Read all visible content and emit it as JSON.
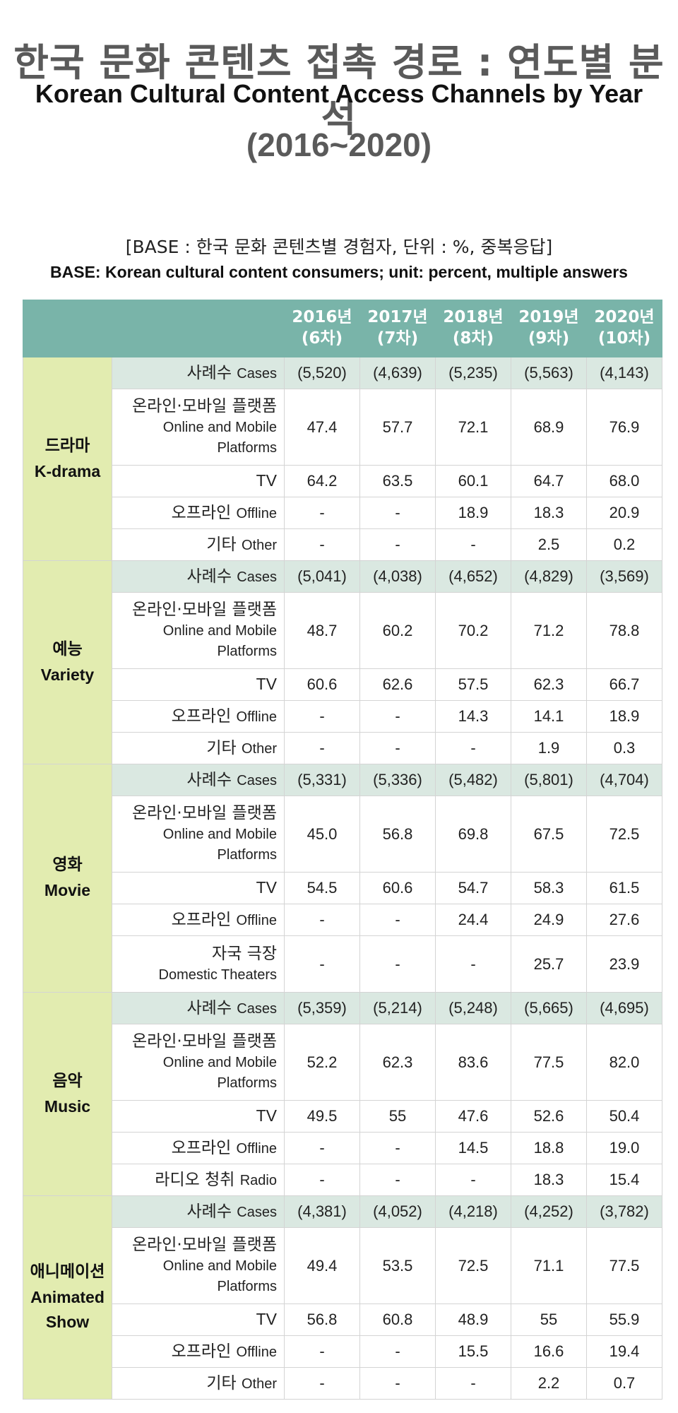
{
  "title": {
    "korean": "한국 문화 콘텐츠 접촉 경로 : 연도별 분석",
    "english": "Korean Cultural Content Access Channels by Year",
    "years": "(2016~2020)"
  },
  "base": {
    "korean": "[BASE : 한국 문화 콘텐츠별 경험자, 단위 : %, 중복응답]",
    "english": "BASE: Korean cultural content consumers; unit: percent, multiple answers"
  },
  "header": [
    {
      "year": "2016년",
      "wave": "(6차)"
    },
    {
      "year": "2017년",
      "wave": "(7차)"
    },
    {
      "year": "2018년",
      "wave": "(8차)"
    },
    {
      "year": "2019년",
      "wave": "(9차)"
    },
    {
      "year": "2020년",
      "wave": "(10차)"
    }
  ],
  "categories": [
    {
      "ko": "드라마",
      "en": "K-drama",
      "rows": [
        {
          "ko": "사례수",
          "en": "Cases",
          "values": [
            "(5,520)",
            "(4,639)",
            "(5,235)",
            "(5,563)",
            "(4,143)"
          ]
        },
        {
          "ko": "온라인·모바일 플랫폼",
          "en": "Online and Mobile Platforms",
          "values": [
            "47.4",
            "57.7",
            "72.1",
            "68.9",
            "76.9"
          ]
        },
        {
          "ko": "",
          "en": "TV",
          "values": [
            "64.2",
            "63.5",
            "60.1",
            "64.7",
            "68.0"
          ]
        },
        {
          "ko": "오프라인",
          "en": "Offline",
          "values": [
            "-",
            "-",
            "18.9",
            "18.3",
            "20.9"
          ]
        },
        {
          "ko": "기타",
          "en": "Other",
          "values": [
            "-",
            "-",
            "-",
            "2.5",
            "0.2"
          ]
        }
      ]
    },
    {
      "ko": "예능",
      "en": "Variety",
      "rows": [
        {
          "ko": "사례수",
          "en": "Cases",
          "values": [
            "(5,041)",
            "(4,038)",
            "(4,652)",
            "(4,829)",
            "(3,569)"
          ]
        },
        {
          "ko": "온라인·모바일 플랫폼",
          "en": "Online and Mobile Platforms",
          "values": [
            "48.7",
            "60.2",
            "70.2",
            "71.2",
            "78.8"
          ]
        },
        {
          "ko": "",
          "en": "TV",
          "values": [
            "60.6",
            "62.6",
            "57.5",
            "62.3",
            "66.7"
          ]
        },
        {
          "ko": "오프라인",
          "en": "Offline",
          "values": [
            "-",
            "-",
            "14.3",
            "14.1",
            "18.9"
          ]
        },
        {
          "ko": "기타",
          "en": "Other",
          "values": [
            "-",
            "-",
            "-",
            "1.9",
            "0.3"
          ]
        }
      ]
    },
    {
      "ko": "영화",
      "en": "Movie",
      "rows": [
        {
          "ko": "사례수",
          "en": "Cases",
          "values": [
            "(5,331)",
            "(5,336)",
            "(5,482)",
            "(5,801)",
            "(4,704)"
          ]
        },
        {
          "ko": "온라인·모바일 플랫폼",
          "en": "Online and Mobile Platforms",
          "values": [
            "45.0",
            "56.8",
            "69.8",
            "67.5",
            "72.5"
          ]
        },
        {
          "ko": "",
          "en": "TV",
          "values": [
            "54.5",
            "60.6",
            "54.7",
            "58.3",
            "61.5"
          ]
        },
        {
          "ko": "오프라인",
          "en": "Offline",
          "values": [
            "-",
            "-",
            "24.4",
            "24.9",
            "27.6"
          ]
        },
        {
          "ko": "자국 극장",
          "en": "Domestic Theaters",
          "values": [
            "-",
            "-",
            "-",
            "25.7",
            "23.9"
          ]
        }
      ]
    },
    {
      "ko": "음악",
      "en": "Music",
      "rows": [
        {
          "ko": "사례수",
          "en": "Cases",
          "values": [
            "(5,359)",
            "(5,214)",
            "(5,248)",
            "(5,665)",
            "(4,695)"
          ]
        },
        {
          "ko": "온라인·모바일 플랫폼",
          "en": "Online and Mobile Platforms",
          "values": [
            "52.2",
            "62.3",
            "83.6",
            "77.5",
            "82.0"
          ]
        },
        {
          "ko": "",
          "en": "TV",
          "values": [
            "49.5",
            "55",
            "47.6",
            "52.6",
            "50.4"
          ]
        },
        {
          "ko": "오프라인",
          "en": "Offline",
          "values": [
            "-",
            "-",
            "14.5",
            "18.8",
            "19.0"
          ]
        },
        {
          "ko": "라디오 청취",
          "en": "Radio",
          "values": [
            "-",
            "-",
            "-",
            "18.3",
            "15.4"
          ]
        }
      ]
    },
    {
      "ko": "애니메이션",
      "en": "Animated Show",
      "rows": [
        {
          "ko": "사례수",
          "en": "Cases",
          "values": [
            "(4,381)",
            "(4,052)",
            "(4,218)",
            "(4,252)",
            "(3,782)"
          ]
        },
        {
          "ko": "온라인·모바일 플랫폼",
          "en": "Online and Mobile Platforms",
          "values": [
            "49.4",
            "53.5",
            "72.5",
            "71.1",
            "77.5"
          ]
        },
        {
          "ko": "",
          "en": "TV",
          "values": [
            "56.8",
            "60.8",
            "48.9",
            "55",
            "55.9"
          ]
        },
        {
          "ko": "오프라인",
          "en": "Offline",
          "values": [
            "-",
            "-",
            "15.5",
            "16.6",
            "19.4"
          ]
        },
        {
          "ko": "기타",
          "en": "Other",
          "values": [
            "-",
            "-",
            "-",
            "2.2",
            "0.7"
          ]
        }
      ]
    }
  ]
}
